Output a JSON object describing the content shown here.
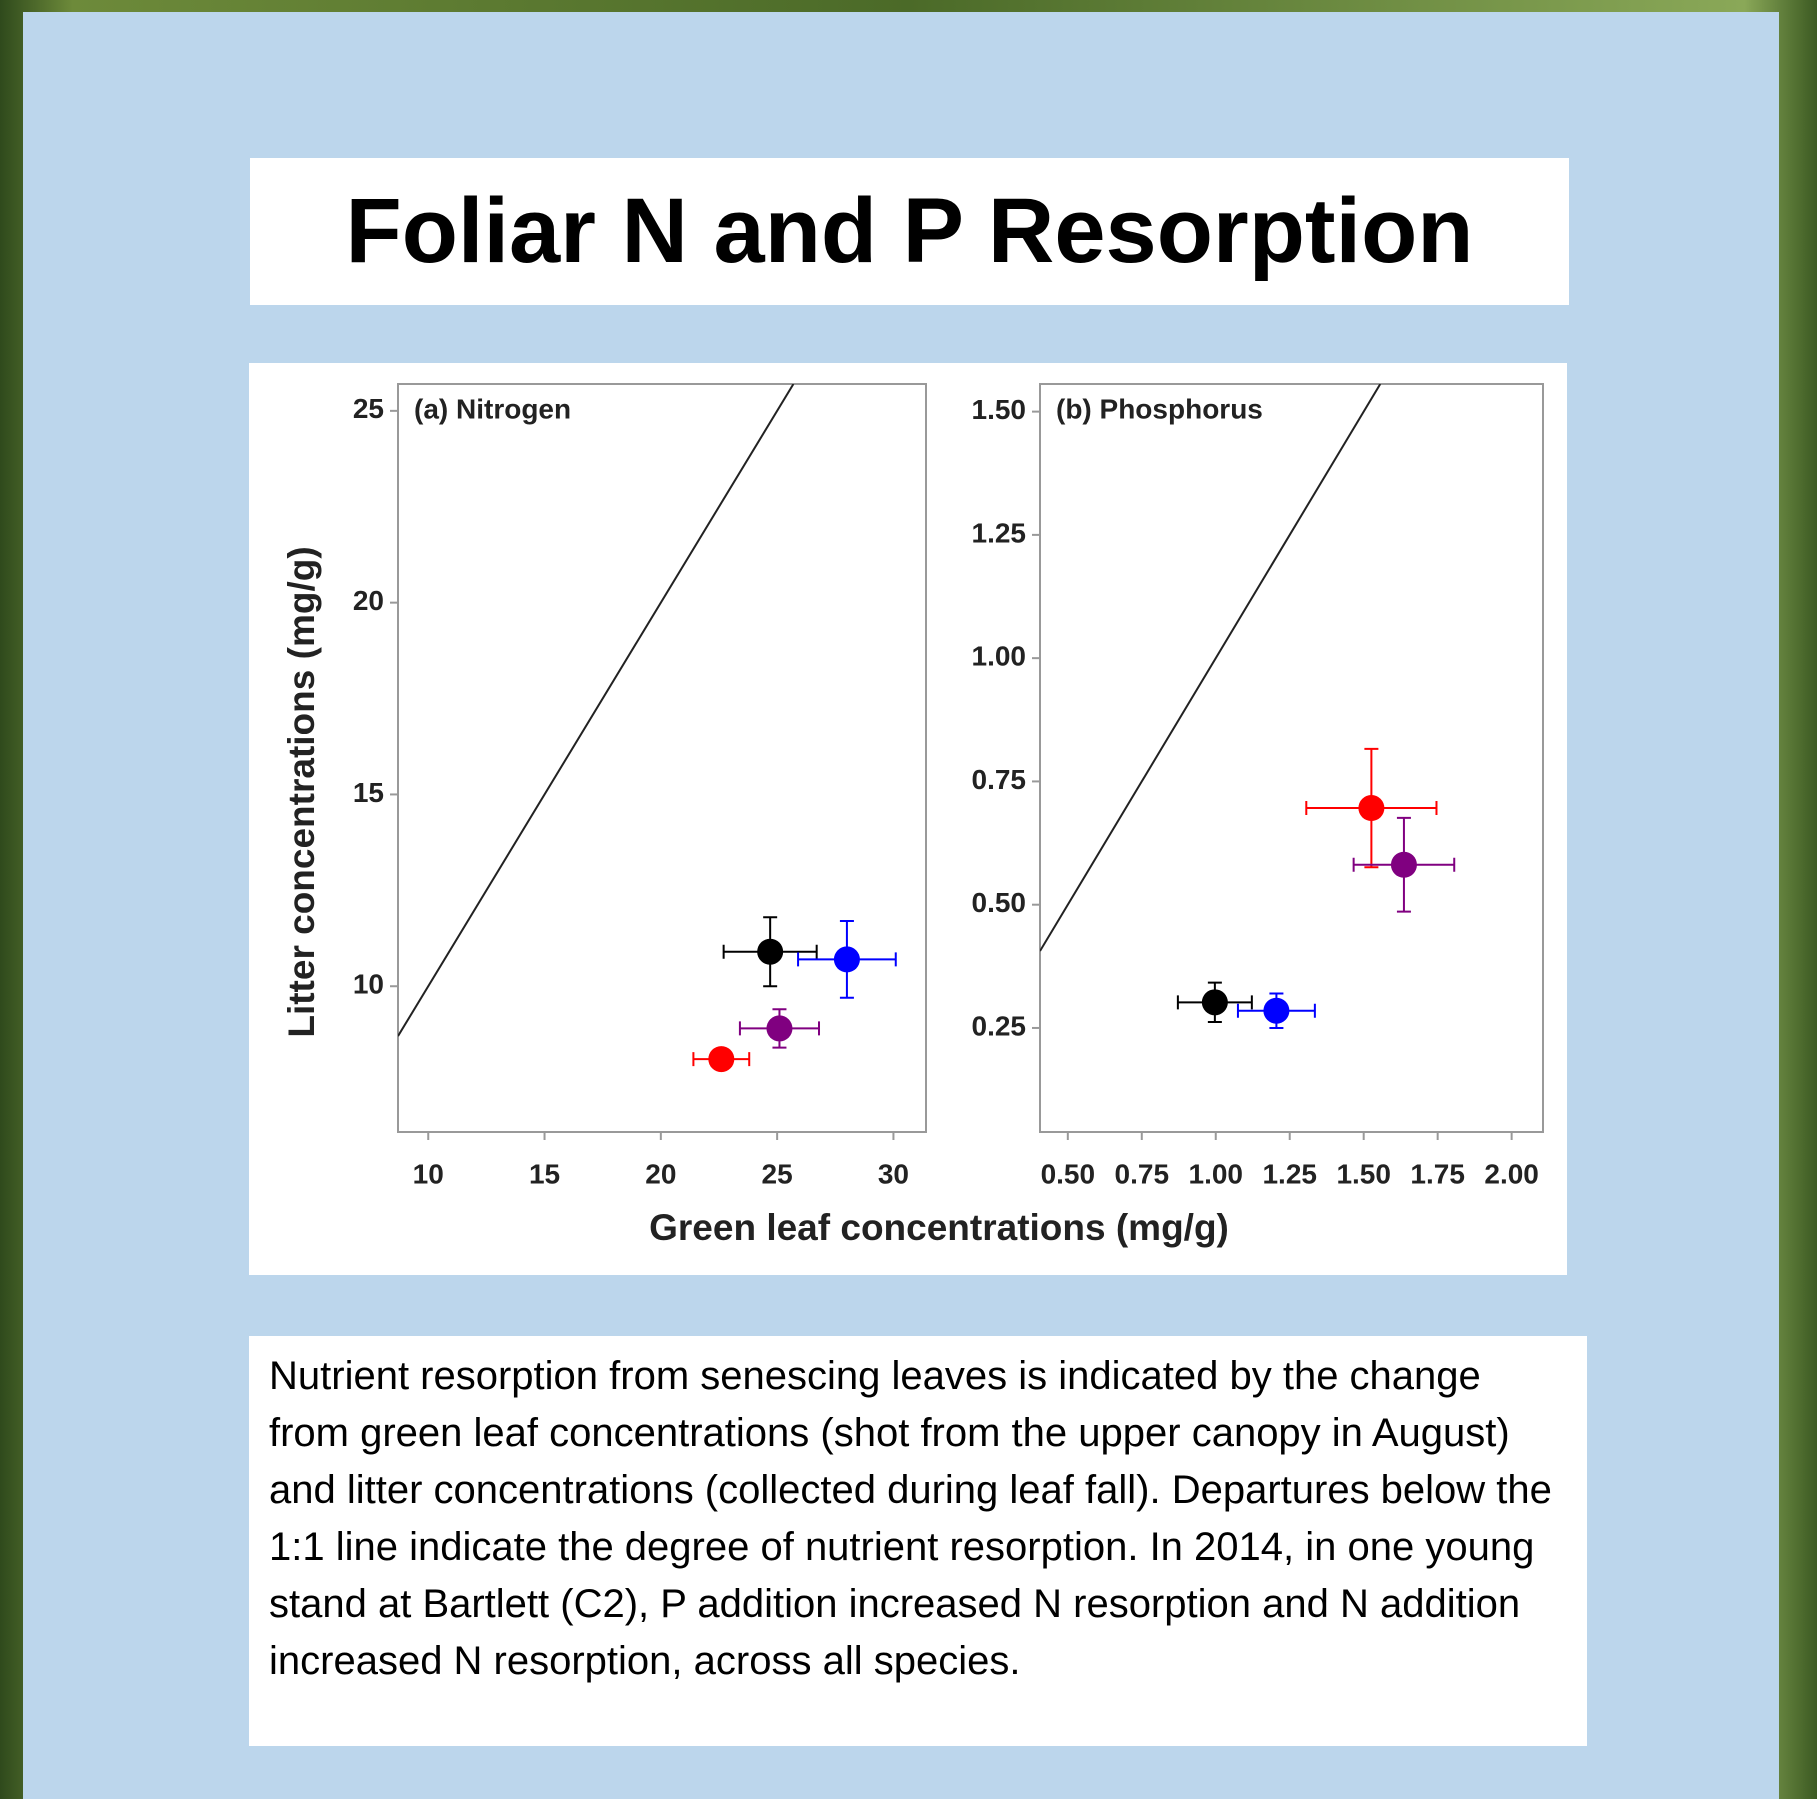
{
  "title": "Foliar N and P Resorption",
  "xlabel": "Green leaf concentrations (mg/g)",
  "ylabel": "Litter concentrations (mg/g)",
  "chart_data": [
    {
      "type": "scatter",
      "title": "(a) Nitrogen",
      "one_to_one_line": true,
      "xlim": [
        8.7,
        31.4
      ],
      "ylim": [
        6.2,
        25.7
      ],
      "xticks": [
        10,
        15,
        20,
        25,
        30
      ],
      "yticks": [
        10,
        15,
        20,
        25
      ],
      "points": [
        {
          "color": "#000000",
          "x": 24.7,
          "y": 10.9,
          "xerr": 2.0,
          "yerr": 0.9
        },
        {
          "color": "#0000ff",
          "x": 28.0,
          "y": 10.7,
          "xerr": 2.1,
          "yerr": 1.0
        },
        {
          "color": "#800080",
          "x": 25.1,
          "y": 8.9,
          "xerr": 1.7,
          "yerr": 0.5
        },
        {
          "color": "#ff0000",
          "x": 22.6,
          "y": 8.1,
          "xerr": 1.2,
          "yerr": 0.1
        }
      ]
    },
    {
      "type": "scatter",
      "title": "(b) Phosphorus",
      "one_to_one_line": true,
      "xlim": [
        0.406,
        2.106
      ],
      "ylim": [
        0.039,
        1.556
      ],
      "xticks": [
        {
          "value": 0.5,
          "label": "0.50"
        },
        0.75,
        {
          "value": 1,
          "label": "1.00"
        },
        1.25,
        {
          "value": 1.5,
          "label": "1.50"
        },
        1.75,
        {
          "value": 2,
          "label": "2.00"
        }
      ],
      "yticks": [
        0.25,
        {
          "value": 0.5,
          "label": "0.50"
        },
        0.75,
        {
          "value": 1,
          "label": "1.00"
        },
        1.25,
        {
          "value": 1.5,
          "label": "1.50"
        }
      ],
      "points": [
        {
          "color": "#ff0000",
          "x": 1.526,
          "y": 0.696,
          "xerr": 0.22,
          "yerr": 0.12
        },
        {
          "color": "#800080",
          "x": 1.636,
          "y": 0.581,
          "xerr": 0.17,
          "yerr": 0.095
        },
        {
          "color": "#000000",
          "x": 0.997,
          "y": 0.302,
          "xerr": 0.125,
          "yerr": 0.04
        },
        {
          "color": "#0000ff",
          "x": 1.205,
          "y": 0.285,
          "xerr": 0.13,
          "yerr": 0.035
        }
      ]
    }
  ],
  "caption": "Nutrient resorption from senescing leaves is indicated by the change from green leaf concentrations (shot from the upper canopy in August) and litter concentrations (collected during leaf fall).  Departures below the 1:1 line indicate the degree of nutrient resorption.  In 2014, in one young stand at Bartlett (C2), P addition increased N resorption and N addition increased N resorption, across all species."
}
